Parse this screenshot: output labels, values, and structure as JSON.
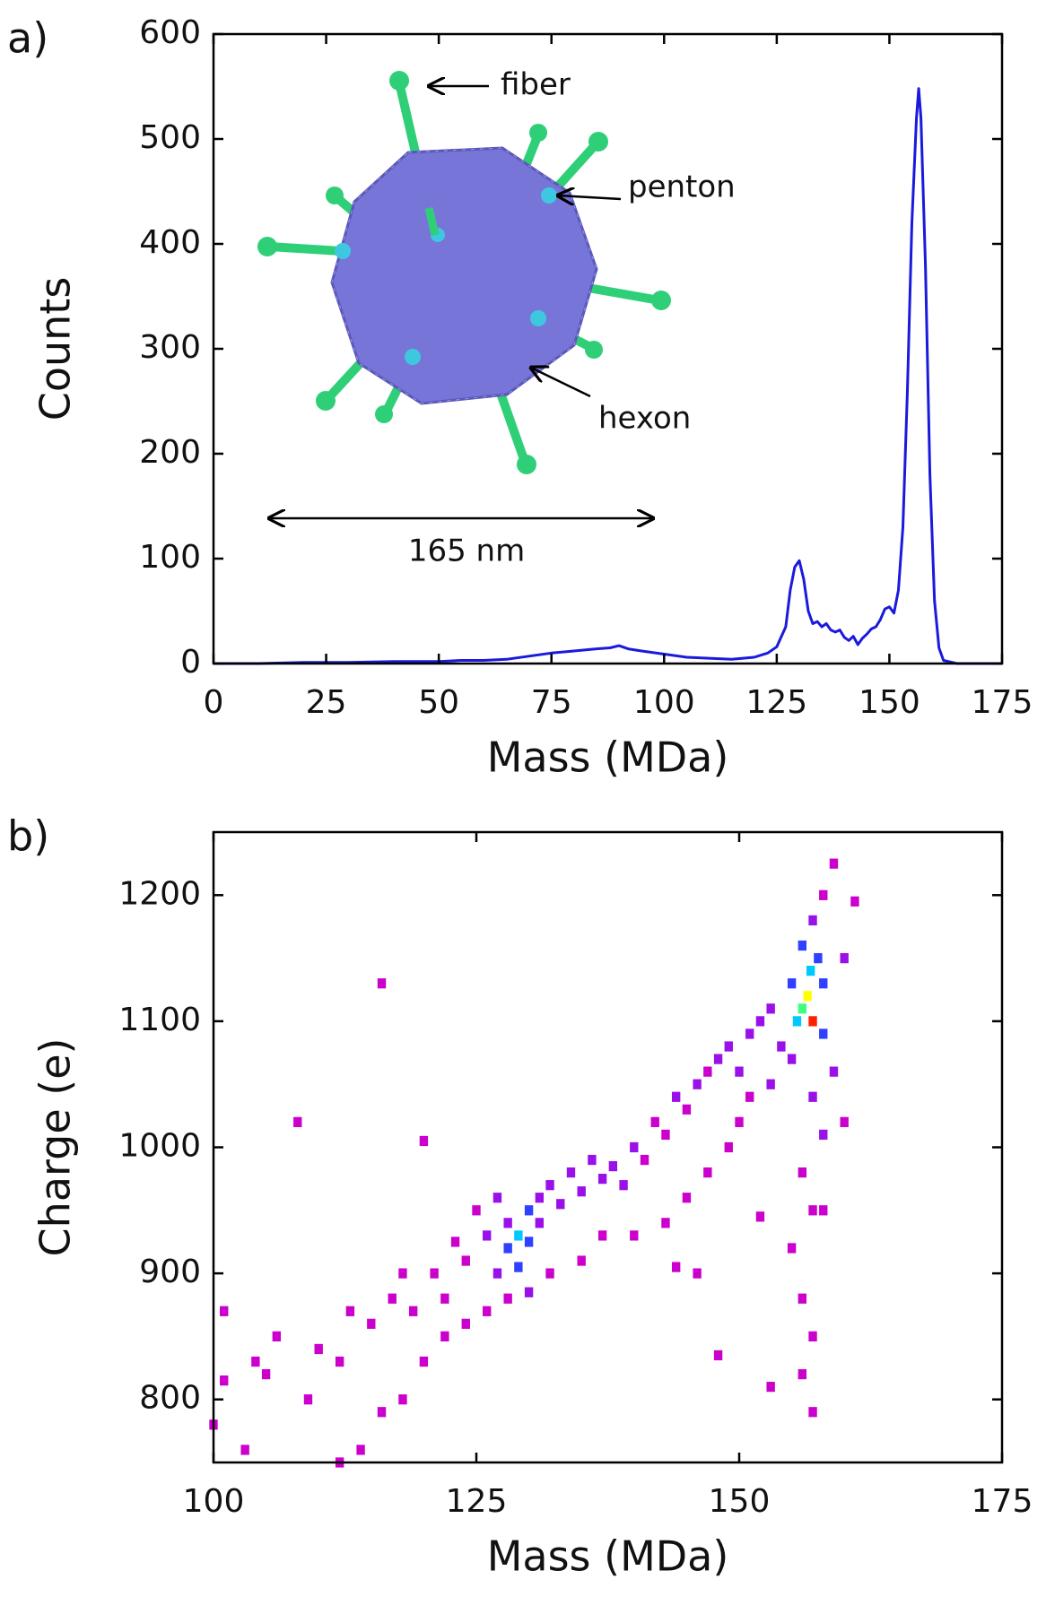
{
  "chart_data": [
    {
      "type": "line",
      "panel_label": "a)",
      "xlabel": "Mass (MDa)",
      "ylabel": "Counts",
      "xlim": [
        0,
        175
      ],
      "xticks": [
        0,
        25,
        50,
        75,
        100,
        125,
        150,
        175
      ],
      "ylim": [
        0,
        600
      ],
      "yticks": [
        0,
        100,
        200,
        300,
        400,
        500,
        600
      ],
      "color": "#1a1adc",
      "x": [
        0,
        10,
        20,
        30,
        40,
        50,
        55,
        60,
        65,
        70,
        75,
        80,
        85,
        88,
        90,
        92,
        95,
        100,
        105,
        110,
        115,
        120,
        123,
        125,
        127,
        128,
        129,
        130,
        131,
        132,
        133,
        134,
        135,
        136,
        137,
        138,
        139,
        140,
        141,
        142,
        143,
        144,
        145,
        146,
        147,
        148,
        149,
        150,
        151,
        152,
        153,
        154,
        155,
        156,
        156.5,
        157,
        158,
        159,
        160,
        161,
        162,
        165,
        175
      ],
      "values": [
        0,
        0,
        1,
        1,
        2,
        2,
        3,
        3,
        4,
        7,
        10,
        12,
        14,
        15,
        17,
        14,
        12,
        9,
        6,
        5,
        4,
        6,
        10,
        16,
        35,
        70,
        92,
        98,
        80,
        50,
        38,
        40,
        35,
        38,
        32,
        30,
        32,
        25,
        22,
        26,
        18,
        24,
        28,
        33,
        35,
        42,
        52,
        54,
        48,
        70,
        130,
        260,
        420,
        520,
        548,
        520,
        380,
        180,
        60,
        15,
        3,
        0,
        0
      ],
      "annotations": [
        "fiber",
        "penton",
        "hexon",
        "165 nm"
      ]
    },
    {
      "type": "heatmap",
      "panel_label": "b)",
      "xlabel": "Mass (MDa)",
      "ylabel": "Charge (e)",
      "xlim": [
        100,
        175
      ],
      "xticks": [
        100,
        125,
        150,
        175
      ],
      "ylim": [
        750,
        1250
      ],
      "yticks": [
        800,
        900,
        1000,
        1100,
        1200
      ],
      "colormap": [
        "#cc00cc",
        "#9a10e8",
        "#3040ff",
        "#00c8ff",
        "#40ff80",
        "#ffff00",
        "#ff2000"
      ],
      "x": [
        101,
        100,
        101,
        103,
        104,
        105,
        106,
        108,
        109,
        110,
        112,
        113,
        115,
        116,
        117,
        118,
        119,
        120,
        121,
        122,
        123,
        124,
        125,
        126,
        127,
        127,
        128,
        128,
        129,
        129,
        130,
        130,
        131,
        131,
        132,
        133,
        134,
        135,
        136,
        137,
        138,
        139,
        140,
        141,
        142,
        143,
        144,
        145,
        146,
        147,
        148,
        149,
        150,
        151,
        152,
        153,
        154,
        155,
        155.5,
        156,
        156.5,
        157,
        156.8,
        157.5,
        156,
        157,
        158,
        158,
        155,
        157,
        158,
        156,
        157,
        155,
        156,
        157,
        156,
        157,
        159,
        160,
        160,
        158,
        159,
        161,
        153,
        151,
        150,
        149,
        147,
        145,
        143,
        140,
        137,
        135,
        132,
        130,
        128,
        126,
        124,
        122,
        120,
        118,
        116,
        114,
        112,
        144,
        148,
        146,
        153,
        158,
        152
      ],
      "y": [
        870,
        780,
        815,
        760,
        830,
        820,
        850,
        1020,
        800,
        840,
        830,
        870,
        860,
        1130,
        880,
        900,
        870,
        1005,
        900,
        880,
        925,
        910,
        950,
        930,
        960,
        900,
        940,
        920,
        930,
        905,
        950,
        925,
        960,
        940,
        970,
        955,
        980,
        965,
        990,
        975,
        985,
        970,
        1000,
        990,
        1020,
        1010,
        1040,
        1030,
        1050,
        1060,
        1070,
        1080,
        1060,
        1090,
        1100,
        1110,
        1080,
        1130,
        1100,
        1110,
        1120,
        1100,
        1140,
        1150,
        1160,
        1180,
        1130,
        1090,
        1070,
        1040,
        1010,
        980,
        950,
        920,
        880,
        850,
        820,
        790,
        1060,
        1020,
        1150,
        1200,
        1225,
        1195,
        1050,
        1040,
        1020,
        1000,
        980,
        960,
        940,
        930,
        930,
        910,
        900,
        885,
        880,
        870,
        860,
        850,
        830,
        800,
        790,
        760,
        750,
        905,
        835,
        900,
        810,
        950,
        945
      ],
      "values": [
        1,
        1,
        1,
        1,
        1,
        1,
        1,
        1,
        1,
        1,
        1,
        1,
        1,
        1,
        1,
        1,
        1,
        1,
        1,
        1,
        1,
        1,
        1,
        2,
        2,
        2,
        3,
        4,
        6,
        4,
        4,
        5,
        3,
        3,
        2,
        2,
        2,
        2,
        2,
        2,
        3,
        2,
        2,
        1,
        1,
        1,
        2,
        1,
        2,
        1,
        2,
        2,
        2,
        2,
        3,
        2,
        3,
        4,
        6,
        8,
        10,
        12,
        7,
        5,
        4,
        3,
        4,
        4,
        3,
        2,
        2,
        1,
        1,
        1,
        1,
        1,
        1,
        1,
        2,
        1,
        2,
        1,
        1,
        1,
        2,
        1,
        1,
        1,
        1,
        1,
        1,
        1,
        1,
        1,
        1,
        2,
        1,
        1,
        1,
        1,
        1,
        1,
        1,
        1,
        1,
        1,
        1,
        1,
        1,
        1,
        1
      ]
    }
  ]
}
